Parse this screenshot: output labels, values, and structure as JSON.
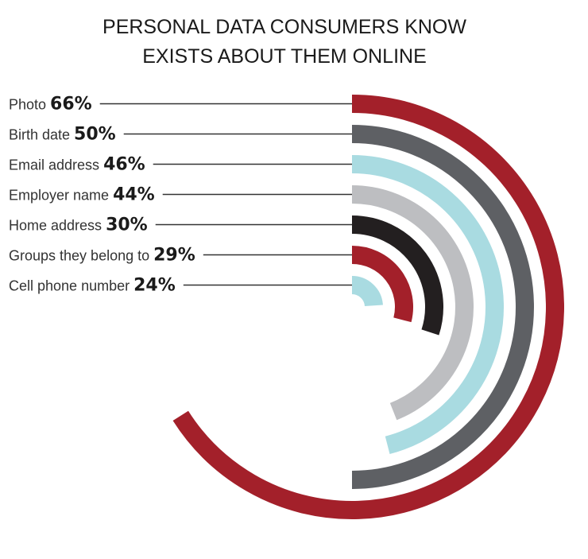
{
  "chart_data": {
    "type": "radial-bar",
    "title": [
      "PERSONAL DATA CONSUMERS KNOW",
      "EXISTS ABOUT THEM ONLINE"
    ],
    "categories": [
      "Photo",
      "Birth date",
      "Email address",
      "Employer name",
      "Home address",
      "Groups they belong to",
      "Cell phone number"
    ],
    "values": [
      66,
      50,
      46,
      44,
      30,
      29,
      24
    ],
    "value_labels": [
      "66%",
      "50%",
      "46%",
      "44%",
      "30%",
      "29%",
      "24%"
    ],
    "colors": [
      "#A3202A",
      "#5E6064",
      "#A9DBE1",
      "#BDBEC1",
      "#231F20",
      "#A3202A",
      "#A9DBE1"
    ]
  }
}
